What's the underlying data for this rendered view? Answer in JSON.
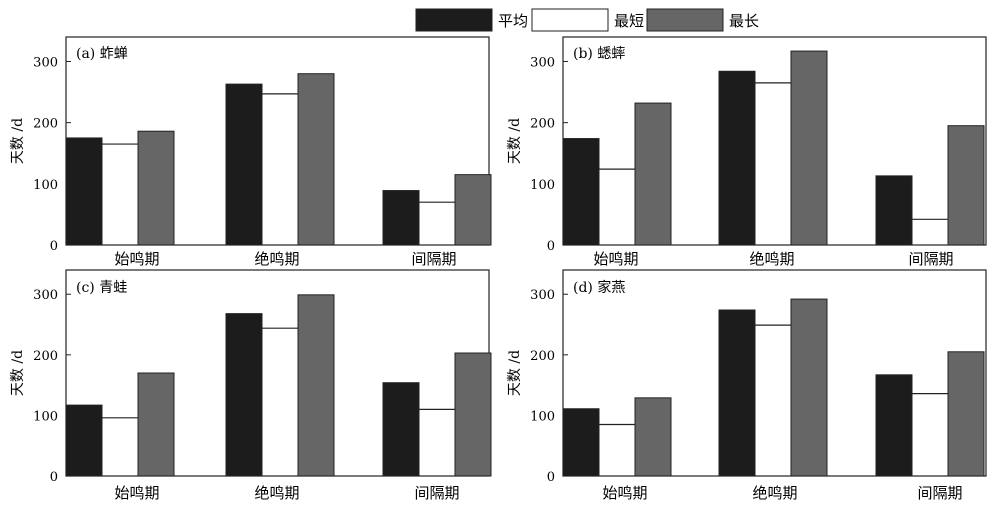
{
  "legend": [
    {
      "name": "平均",
      "color": "#1c1c1c",
      "outline_only": false
    },
    {
      "name": "最短",
      "color": "#ffffff",
      "outline_only": true
    },
    {
      "name": "最长",
      "color": "#666666",
      "outline_only": false
    }
  ],
  "chart_data": [
    {
      "type": "bar",
      "title": "(a) 蚱蝉",
      "ylabel": "天数 /d",
      "categories": [
        "始鸣期",
        "绝鸣期",
        "间隔期"
      ],
      "series": [
        {
          "name": "平均",
          "values": [
            175,
            263,
            89
          ]
        },
        {
          "name": "最短",
          "values": [
            165,
            247,
            70
          ]
        },
        {
          "name": "最长",
          "values": [
            186,
            280,
            115
          ]
        }
      ],
      "yticks": [
        0,
        100,
        200,
        300
      ],
      "ylim": [
        0,
        340
      ]
    },
    {
      "type": "bar",
      "title": "(b) 蟋蟀",
      "ylabel": "天数 /d",
      "categories": [
        "始鸣期",
        "绝鸣期",
        "间隔期"
      ],
      "series": [
        {
          "name": "平均",
          "values": [
            174,
            284,
            113
          ]
        },
        {
          "name": "最短",
          "values": [
            124,
            265,
            42
          ]
        },
        {
          "name": "最长",
          "values": [
            232,
            317,
            195
          ]
        }
      ],
      "yticks": [
        0,
        100,
        200,
        300
      ],
      "ylim": [
        0,
        340
      ]
    },
    {
      "type": "bar",
      "title": "(c) 青蛙",
      "ylabel": "天数 /d",
      "categories": [
        "始鸣期",
        "绝鸣期",
        "间隔期"
      ],
      "series": [
        {
          "name": "平均",
          "values": [
            117,
            268,
            154
          ]
        },
        {
          "name": "最短",
          "values": [
            96,
            244,
            110
          ]
        },
        {
          "name": "最长",
          "values": [
            170,
            299,
            203
          ]
        }
      ],
      "yticks": [
        0,
        100,
        200,
        300
      ],
      "ylim": [
        0,
        340
      ]
    },
    {
      "type": "bar",
      "title": "(d) 家燕",
      "ylabel": "天数 /d",
      "categories": [
        "始鸣期",
        "绝鸣期",
        "间隔期"
      ],
      "series": [
        {
          "name": "平均",
          "values": [
            111,
            274,
            167
          ]
        },
        {
          "name": "最短",
          "values": [
            85,
            249,
            136
          ]
        },
        {
          "name": "最长",
          "values": [
            129,
            292,
            205
          ]
        }
      ],
      "yticks": [
        0,
        100,
        200,
        300
      ],
      "ylim": [
        0,
        340
      ]
    }
  ]
}
